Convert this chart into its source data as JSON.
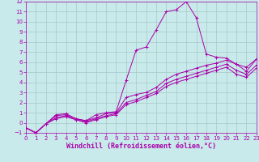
{
  "background_color": "#c8eaea",
  "grid_color": "#a8c8c8",
  "line_color": "#aa00aa",
  "x_min": 0,
  "x_max": 23,
  "y_min": -1,
  "y_max": 12,
  "xlabel": "Windchill (Refroidissement éolien,°C)",
  "xlabel_fontsize": 6,
  "series1_x": [
    0,
    1,
    2,
    3,
    4,
    5,
    6,
    7,
    8,
    9,
    10,
    11,
    12,
    13,
    14,
    15,
    16,
    17,
    18,
    19,
    20,
    21,
    22,
    23
  ],
  "series1_y": [
    -0.5,
    -1.0,
    -0.1,
    0.8,
    0.9,
    0.4,
    0.2,
    0.8,
    1.0,
    1.1,
    4.2,
    7.2,
    7.5,
    9.2,
    11.0,
    11.2,
    12.0,
    10.4,
    6.8,
    6.5,
    6.4,
    5.8,
    5.1,
    6.3
  ],
  "series2_x": [
    0,
    1,
    2,
    3,
    4,
    5,
    6,
    7,
    8,
    9,
    10,
    11,
    12,
    13,
    14,
    15,
    16,
    17,
    18,
    19,
    20,
    21,
    22,
    23
  ],
  "series2_y": [
    -0.5,
    -1.0,
    -0.1,
    0.7,
    0.8,
    0.4,
    0.2,
    0.5,
    0.9,
    1.0,
    2.5,
    2.8,
    3.0,
    3.5,
    4.3,
    4.8,
    5.1,
    5.4,
    5.7,
    5.9,
    6.2,
    5.8,
    5.5,
    6.3
  ],
  "series3_x": [
    0,
    1,
    2,
    3,
    4,
    5,
    6,
    7,
    8,
    9,
    10,
    11,
    12,
    13,
    14,
    15,
    16,
    17,
    18,
    19,
    20,
    21,
    22,
    23
  ],
  "series3_y": [
    -0.5,
    -1.0,
    -0.1,
    0.5,
    0.7,
    0.3,
    0.1,
    0.4,
    0.7,
    0.9,
    2.0,
    2.3,
    2.7,
    3.1,
    3.9,
    4.3,
    4.6,
    4.9,
    5.2,
    5.5,
    5.8,
    5.2,
    4.8,
    5.7
  ],
  "series4_x": [
    0,
    1,
    2,
    3,
    4,
    5,
    6,
    7,
    8,
    9,
    10,
    11,
    12,
    13,
    14,
    15,
    16,
    17,
    18,
    19,
    20,
    21,
    22,
    23
  ],
  "series4_y": [
    -0.5,
    -1.0,
    -0.1,
    0.4,
    0.6,
    0.3,
    0.0,
    0.3,
    0.6,
    0.8,
    1.8,
    2.1,
    2.5,
    2.9,
    3.6,
    4.0,
    4.3,
    4.6,
    4.9,
    5.2,
    5.5,
    4.8,
    4.5,
    5.4
  ]
}
